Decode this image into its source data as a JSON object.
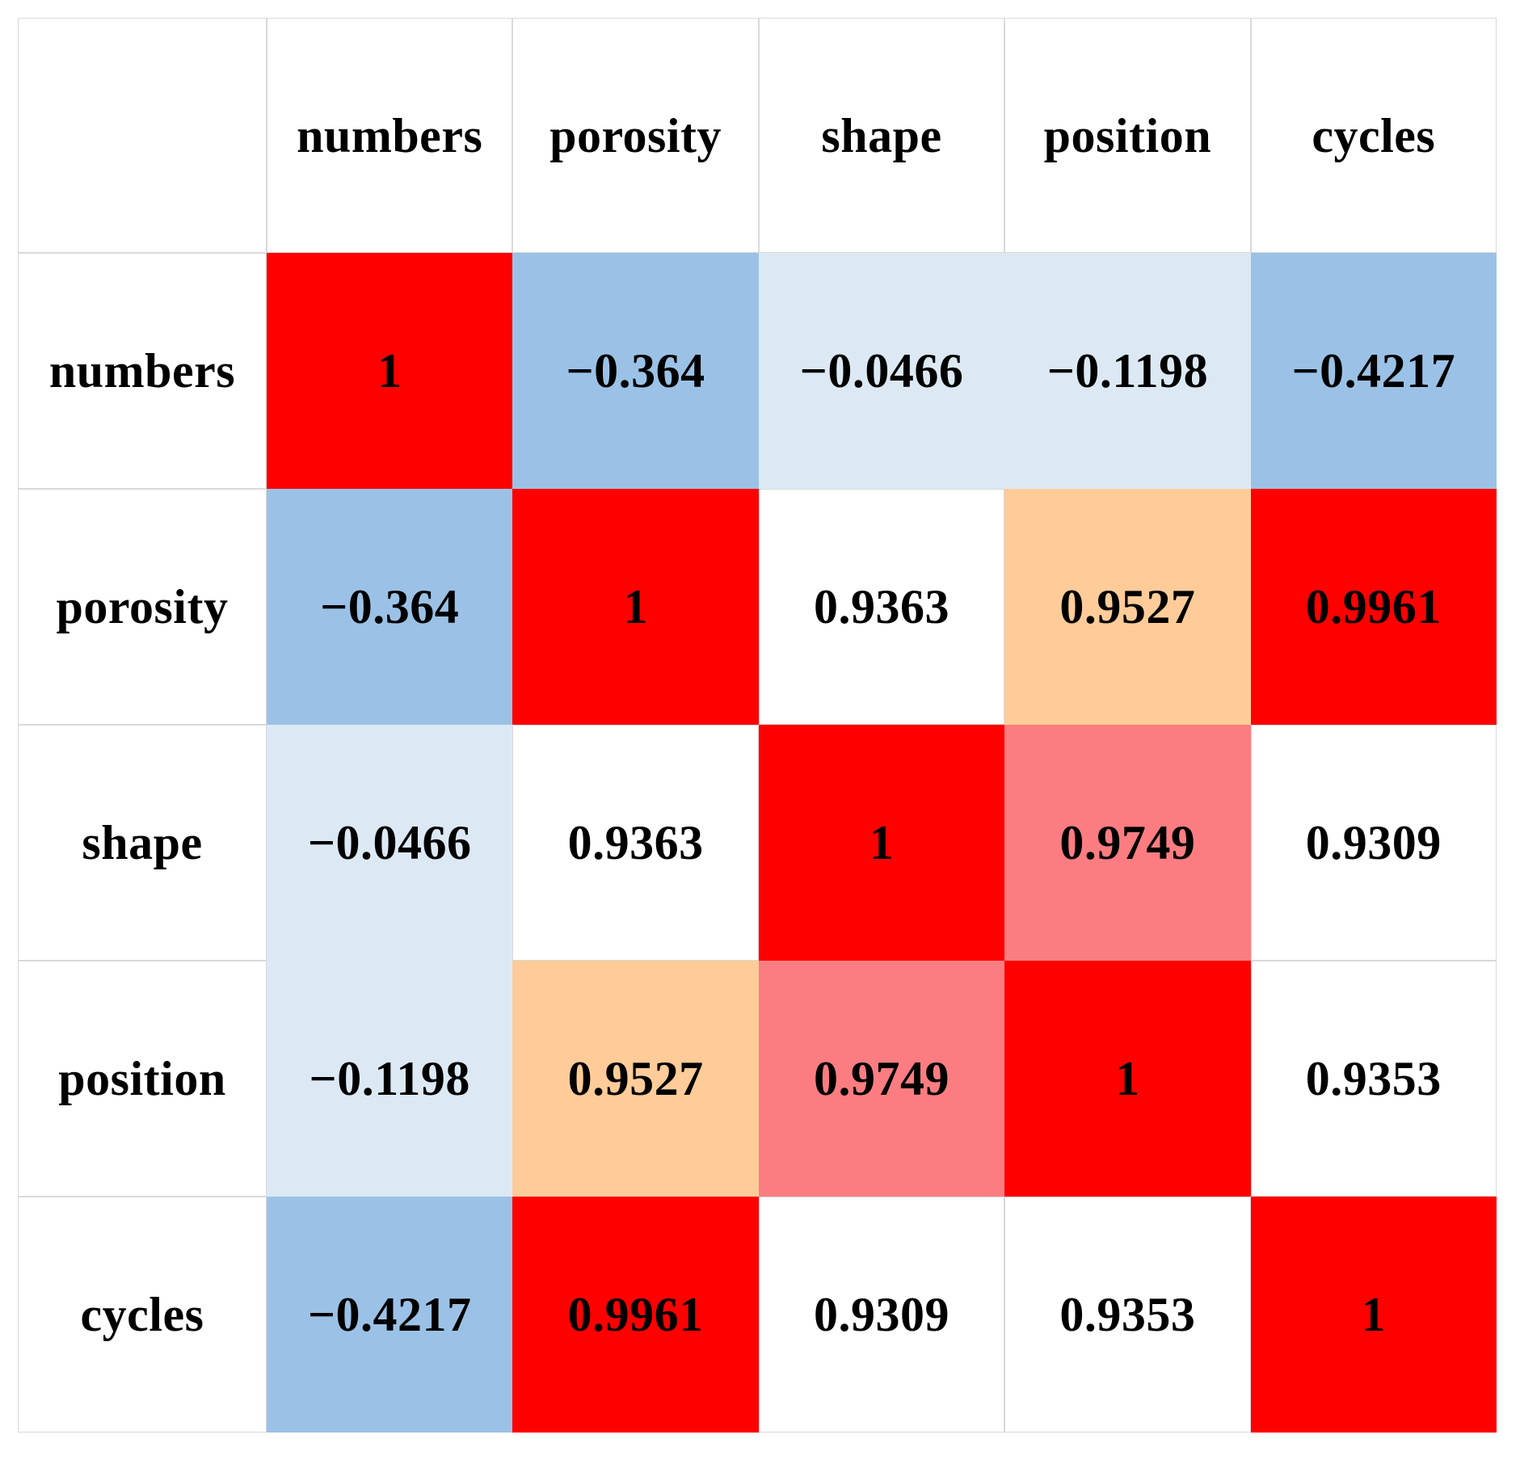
{
  "table": {
    "corner_label": "",
    "columns": [
      "numbers",
      "porosity",
      "shape",
      "position",
      "cycles"
    ],
    "rows": [
      "numbers",
      "porosity",
      "shape",
      "position",
      "cycles"
    ],
    "values_display": [
      [
        "1",
        "−0.364",
        "−0.0466",
        "−0.1198",
        "−0.4217"
      ],
      [
        "−0.364",
        "1",
        "0.9363",
        "0.9527",
        "0.9961"
      ],
      [
        "−0.0466",
        "0.9363",
        "1",
        "0.9749",
        "0.9309"
      ],
      [
        "−0.1198",
        "0.9527",
        "0.9749",
        "1",
        "0.9353"
      ],
      [
        "−0.4217",
        "0.9961",
        "0.9309",
        "0.9353",
        "1"
      ]
    ],
    "cell_colors": [
      [
        "red",
        "mblue",
        "lblue",
        "lblue",
        "mblue"
      ],
      [
        "mblue",
        "red",
        "white",
        "orange",
        "red"
      ],
      [
        "lblue",
        "white",
        "red",
        "pink",
        "white"
      ],
      [
        "lblue",
        "orange",
        "pink",
        "red",
        "white"
      ],
      [
        "mblue",
        "red",
        "white",
        "white",
        "red"
      ]
    ],
    "palette": {
      "red": "#FE0000",
      "mblue": "#9BC2E6",
      "lblue": "#DCE9F5",
      "orange": "#FFCC99",
      "pink": "#FB7D81",
      "white": "#FFFFFF",
      "border": "#D9D9D9",
      "text": "#000000"
    }
  },
  "chart_data": {
    "type": "heatmap",
    "title": "",
    "x_categories": [
      "numbers",
      "porosity",
      "shape",
      "position",
      "cycles"
    ],
    "y_categories": [
      "numbers",
      "porosity",
      "shape",
      "position",
      "cycles"
    ],
    "matrix": [
      [
        1,
        -0.364,
        -0.0466,
        -0.1198,
        -0.4217
      ],
      [
        -0.364,
        1,
        0.9363,
        0.9527,
        0.9961
      ],
      [
        -0.0466,
        0.9363,
        1,
        0.9749,
        0.9309
      ],
      [
        -0.1198,
        0.9527,
        0.9749,
        1,
        0.9353
      ],
      [
        -0.4217,
        0.9961,
        0.9309,
        0.9353,
        1
      ]
    ],
    "legend": "none",
    "grid": "light-gray lines around white cells only"
  }
}
